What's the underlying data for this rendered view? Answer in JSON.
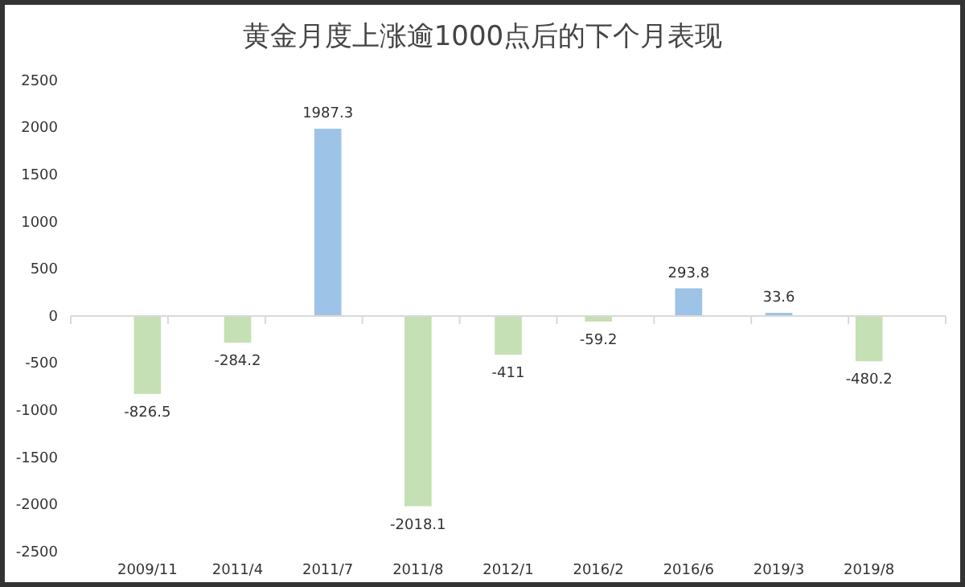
{
  "chart_data": {
    "type": "bar",
    "title": "黄金月度上涨逾1000点后的下个月表现",
    "categories": [
      "2009/11",
      "2011/4",
      "2011/7",
      "2011/8",
      "2012/1",
      "2016/2",
      "2016/6",
      "2019/3",
      "2019/8"
    ],
    "values": [
      -826.5,
      -284.2,
      1987.3,
      -2018.1,
      -411,
      -59.2,
      293.8,
      33.6,
      -480.2
    ],
    "colors": [
      "#c5e0b4",
      "#c5e0b4",
      "#9dc3e6",
      "#c5e0b4",
      "#c5e0b4",
      "#c5e0b4",
      "#9dc3e6",
      "#9dc3e6",
      "#c5e0b4"
    ],
    "ylim": [
      -2500,
      2500
    ],
    "yticks": [
      -2500,
      -2000,
      -1500,
      -1000,
      -500,
      0,
      500,
      1000,
      1500,
      2000,
      2500
    ],
    "data_labels": true
  }
}
